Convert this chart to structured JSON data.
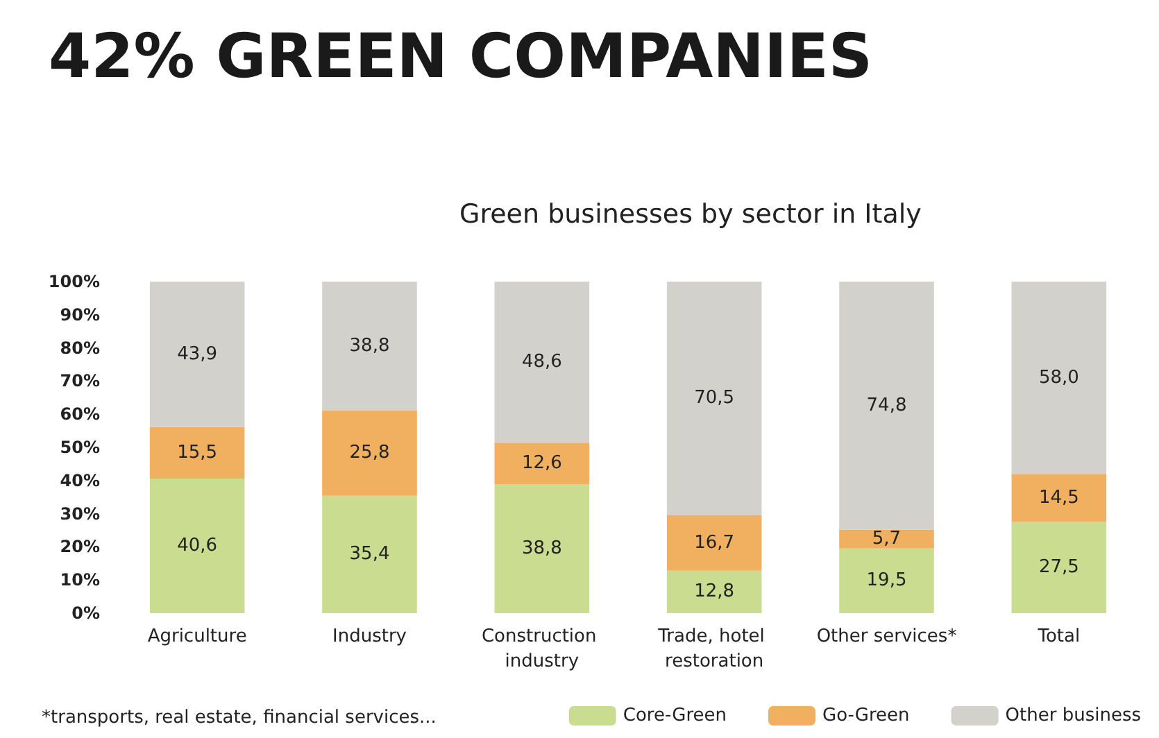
{
  "chart_data": {
    "type": "bar",
    "title": "42% GREEN COMPANIES",
    "subtitle": "Green businesses by sector in Italy",
    "annotations": [
      "*transports, real estate, financial services..."
    ],
    "categories": [
      "Agriculture",
      "Industry",
      "Construction industry",
      "Trade, hotel restoration",
      "Other services*",
      "Total"
    ],
    "stacked": true,
    "series": [
      {
        "name": "Core-Green",
        "color": "#c9dc8f",
        "values": [
          40.6,
          35.4,
          38.8,
          12.8,
          19.5,
          27.5
        ],
        "value_labels": [
          "40,6",
          "35,4",
          "38,8",
          "12,8",
          "19,5",
          "27,5"
        ]
      },
      {
        "name": "Go-Green",
        "color": "#f0b060",
        "values": [
          15.5,
          25.8,
          12.6,
          16.7,
          5.7,
          14.5
        ],
        "value_labels": [
          "15,5",
          "25,8",
          "12,6",
          "16,7",
          "5,7",
          "14,5"
        ]
      },
      {
        "name": "Other business",
        "color": "#d3d1cc",
        "values": [
          43.9,
          38.8,
          48.6,
          70.5,
          74.8,
          58.0
        ],
        "value_labels": [
          "43,9",
          "38,8",
          "48,6",
          "70,5",
          "74,8",
          "58,0"
        ]
      }
    ],
    "ylim": [
      0,
      100
    ],
    "yticks": [
      {
        "value": 0,
        "label": "0%"
      },
      {
        "value": 10,
        "label": "10%"
      },
      {
        "value": 20,
        "label": "20%"
      },
      {
        "value": 30,
        "label": "30%"
      },
      {
        "value": 40,
        "label": "40%"
      },
      {
        "value": 50,
        "label": "50%"
      },
      {
        "value": 60,
        "label": "60%"
      },
      {
        "value": 70,
        "label": "70%"
      },
      {
        "value": 80,
        "label": "80%"
      },
      {
        "value": 90,
        "label": "90%"
      },
      {
        "value": 100,
        "label": "100%"
      }
    ],
    "grid": false,
    "legend": "bottom right"
  }
}
